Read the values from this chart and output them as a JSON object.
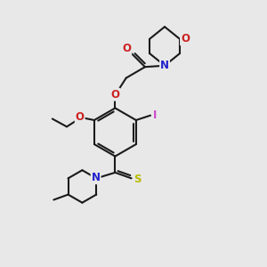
{
  "bg_color": "#e8e8e8",
  "bond_color": "#1a1a1a",
  "bond_width": 1.5,
  "colors": {
    "N": "#2020cc",
    "O": "#cc2020",
    "S": "#bbbb00",
    "I": "#cc44cc"
  },
  "font_size": 8.5
}
